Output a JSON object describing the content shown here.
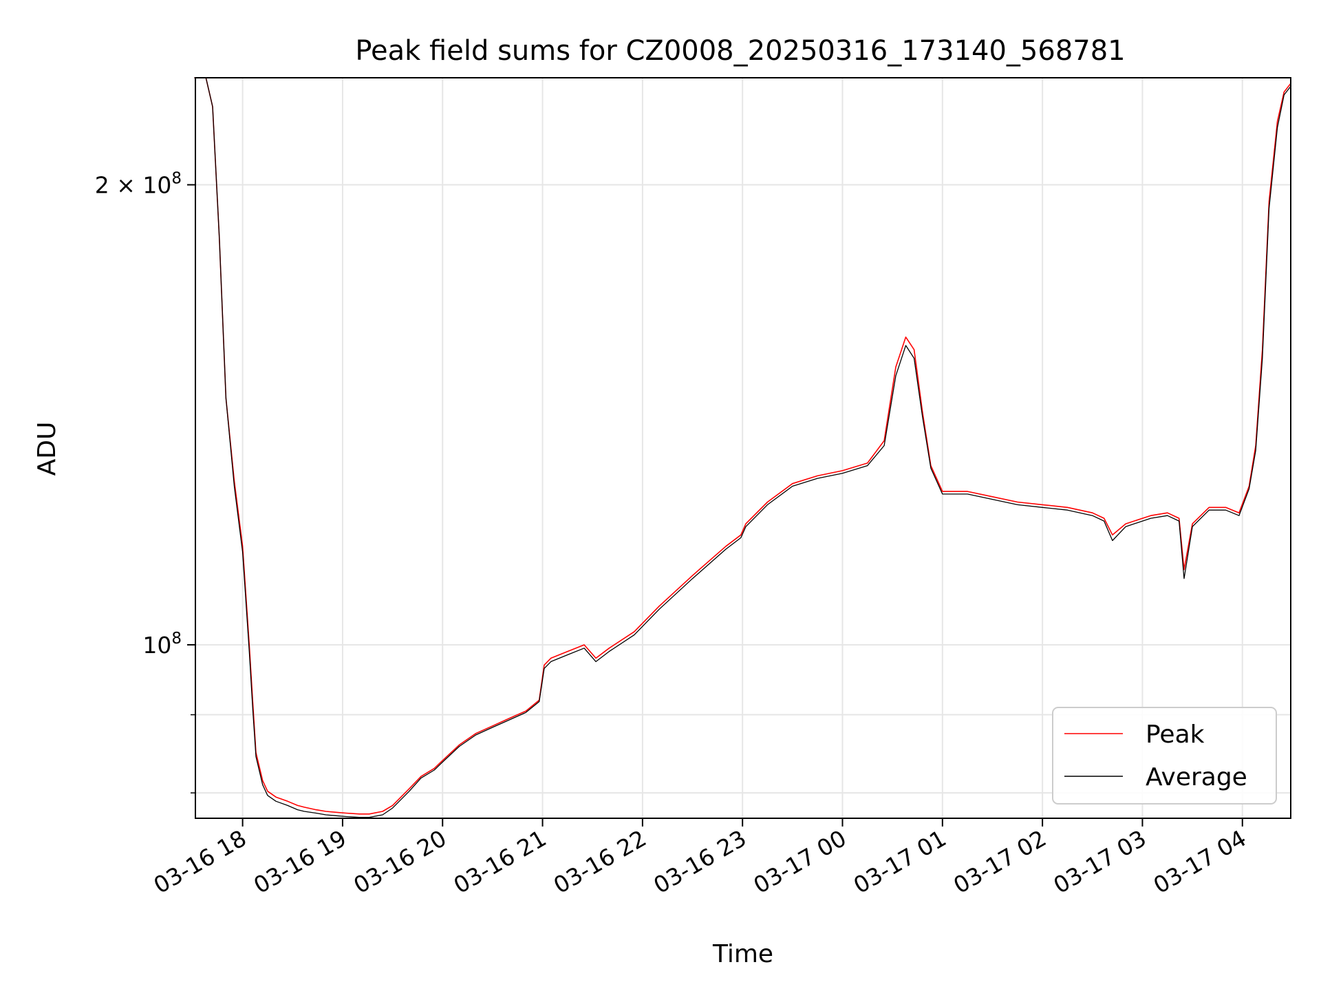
{
  "chart_data": {
    "type": "line",
    "title": "Peak field sums for CZ0008_20250316_173140_568781",
    "xlabel": "Time",
    "ylabel": "ADU",
    "y_scale": "log",
    "ylim": [
      77000000,
      235000000
    ],
    "xlim": [
      "2025-03-16 17:31:40",
      "2025-03-17 04:29:00"
    ],
    "grid": true,
    "legend_position": "lower-right",
    "x_ticks": [
      {
        "t": "2025-03-16 18:00",
        "label": "03-16 18"
      },
      {
        "t": "2025-03-16 19:00",
        "label": "03-16 19"
      },
      {
        "t": "2025-03-16 20:00",
        "label": "03-16 20"
      },
      {
        "t": "2025-03-16 21:00",
        "label": "03-16 21"
      },
      {
        "t": "2025-03-16 22:00",
        "label": "03-16 22"
      },
      {
        "t": "2025-03-16 23:00",
        "label": "03-16 23"
      },
      {
        "t": "2025-03-17 00:00",
        "label": "03-17 00"
      },
      {
        "t": "2025-03-17 01:00",
        "label": "03-17 01"
      },
      {
        "t": "2025-03-17 02:00",
        "label": "03-17 02"
      },
      {
        "t": "2025-03-17 03:00",
        "label": "03-17 03"
      },
      {
        "t": "2025-03-17 04:00",
        "label": "03-17 04"
      }
    ],
    "y_major_ticks": [
      {
        "value": 100000000,
        "label_base": "10",
        "label_exp": "8"
      },
      {
        "value": 200000000,
        "label_base": "2 × 10",
        "label_exp": "8"
      }
    ],
    "y_minor_ticks": [
      80000000,
      90000000
    ],
    "series": [
      {
        "name": "Peak",
        "color": "#ff0000",
        "x": [
          "2025-03-16 17:31",
          "2025-03-16 17:38",
          "2025-03-16 17:42",
          "2025-03-16 17:46",
          "2025-03-16 17:50",
          "2025-03-16 17:55",
          "2025-03-16 18:00",
          "2025-03-16 18:04",
          "2025-03-16 18:06",
          "2025-03-16 18:08",
          "2025-03-16 18:12",
          "2025-03-16 18:15",
          "2025-03-16 18:20",
          "2025-03-16 18:27",
          "2025-03-16 18:33",
          "2025-03-16 18:37",
          "2025-03-16 18:44",
          "2025-03-16 18:50",
          "2025-03-16 18:56",
          "2025-03-16 19:02",
          "2025-03-16 19:10",
          "2025-03-16 19:16",
          "2025-03-16 19:24",
          "2025-03-16 19:30",
          "2025-03-16 19:40",
          "2025-03-16 19:47",
          "2025-03-16 19:55",
          "2025-03-16 20:00",
          "2025-03-16 20:10",
          "2025-03-16 20:20",
          "2025-03-16 20:30",
          "2025-03-16 20:40",
          "2025-03-16 20:50",
          "2025-03-16 20:58",
          "2025-03-16 21:01",
          "2025-03-16 21:05",
          "2025-03-16 21:15",
          "2025-03-16 21:25",
          "2025-03-16 21:32",
          "2025-03-16 21:40",
          "2025-03-16 21:55",
          "2025-03-16 22:10",
          "2025-03-16 22:30",
          "2025-03-16 22:50",
          "2025-03-16 22:59",
          "2025-03-16 23:02",
          "2025-03-16 23:15",
          "2025-03-16 23:30",
          "2025-03-16 23:45",
          "2025-03-17 00:00",
          "2025-03-17 00:15",
          "2025-03-17 00:25",
          "2025-03-17 00:32",
          "2025-03-17 00:38",
          "2025-03-17 00:43",
          "2025-03-17 00:48",
          "2025-03-17 00:53",
          "2025-03-17 01:00",
          "2025-03-17 01:15",
          "2025-03-17 01:30",
          "2025-03-17 01:45",
          "2025-03-17 02:00",
          "2025-03-17 02:15",
          "2025-03-17 02:30",
          "2025-03-17 02:37",
          "2025-03-17 02:42",
          "2025-03-17 02:50",
          "2025-03-17 03:05",
          "2025-03-17 03:15",
          "2025-03-17 03:22",
          "2025-03-17 03:25",
          "2025-03-17 03:30",
          "2025-03-17 03:40",
          "2025-03-17 03:50",
          "2025-03-17 03:58",
          "2025-03-17 04:04",
          "2025-03-17 04:08",
          "2025-03-17 04:12",
          "2025-03-17 04:16",
          "2025-03-17 04:21",
          "2025-03-17 04:25",
          "2025-03-17 04:29"
        ],
        "y": [
          235000000,
          235000000,
          225000000,
          185000000,
          145000000,
          128000000,
          116000000,
          100000000,
          92000000,
          85000000,
          81500000,
          80200000,
          79500000,
          79000000,
          78500000,
          78300000,
          78000000,
          77800000,
          77700000,
          77600000,
          77500000,
          77500000,
          77800000,
          78500000,
          80500000,
          82000000,
          83000000,
          84000000,
          86000000,
          87500000,
          88500000,
          89500000,
          90500000,
          92000000,
          97000000,
          98000000,
          99000000,
          100000000,
          98000000,
          99500000,
          102000000,
          106000000,
          111000000,
          116000000,
          118000000,
          120000000,
          124000000,
          127500000,
          129000000,
          130000000,
          131500000,
          136000000,
          152000000,
          159000000,
          156000000,
          142000000,
          131000000,
          126000000,
          126000000,
          125000000,
          124000000,
          123500000,
          123000000,
          122000000,
          121000000,
          118000000,
          120000000,
          121500000,
          122000000,
          121000000,
          112000000,
          120000000,
          123000000,
          123000000,
          122000000,
          127000000,
          135000000,
          156000000,
          195000000,
          220000000,
          230000000,
          233000000
        ]
      },
      {
        "name": "Average",
        "color": "#000000",
        "x": [
          "2025-03-16 17:31",
          "2025-03-16 17:38",
          "2025-03-16 17:42",
          "2025-03-16 17:46",
          "2025-03-16 17:50",
          "2025-03-16 17:55",
          "2025-03-16 18:00",
          "2025-03-16 18:04",
          "2025-03-16 18:06",
          "2025-03-16 18:08",
          "2025-03-16 18:12",
          "2025-03-16 18:15",
          "2025-03-16 18:20",
          "2025-03-16 18:27",
          "2025-03-16 18:33",
          "2025-03-16 18:37",
          "2025-03-16 18:44",
          "2025-03-16 18:50",
          "2025-03-16 18:56",
          "2025-03-16 19:02",
          "2025-03-16 19:10",
          "2025-03-16 19:16",
          "2025-03-16 19:24",
          "2025-03-16 19:30",
          "2025-03-16 19:40",
          "2025-03-16 19:47",
          "2025-03-16 19:55",
          "2025-03-16 20:00",
          "2025-03-16 20:10",
          "2025-03-16 20:20",
          "2025-03-16 20:30",
          "2025-03-16 20:40",
          "2025-03-16 20:50",
          "2025-03-16 20:58",
          "2025-03-16 21:01",
          "2025-03-16 21:05",
          "2025-03-16 21:15",
          "2025-03-16 21:25",
          "2025-03-16 21:32",
          "2025-03-16 21:40",
          "2025-03-16 21:55",
          "2025-03-16 22:10",
          "2025-03-16 22:30",
          "2025-03-16 22:50",
          "2025-03-16 22:59",
          "2025-03-16 23:02",
          "2025-03-16 23:15",
          "2025-03-16 23:30",
          "2025-03-16 23:45",
          "2025-03-17 00:00",
          "2025-03-17 00:15",
          "2025-03-17 00:25",
          "2025-03-17 00:32",
          "2025-03-17 00:38",
          "2025-03-17 00:43",
          "2025-03-17 00:48",
          "2025-03-17 00:53",
          "2025-03-17 01:00",
          "2025-03-17 01:15",
          "2025-03-17 01:30",
          "2025-03-17 01:45",
          "2025-03-17 02:00",
          "2025-03-17 02:15",
          "2025-03-17 02:30",
          "2025-03-17 02:37",
          "2025-03-17 02:42",
          "2025-03-17 02:50",
          "2025-03-17 03:05",
          "2025-03-17 03:15",
          "2025-03-17 03:22",
          "2025-03-17 03:25",
          "2025-03-17 03:30",
          "2025-03-17 03:40",
          "2025-03-17 03:50",
          "2025-03-17 03:58",
          "2025-03-17 04:04",
          "2025-03-17 04:08",
          "2025-03-17 04:12",
          "2025-03-17 04:16",
          "2025-03-17 04:21",
          "2025-03-17 04:25",
          "2025-03-17 04:29"
        ],
        "y": [
          235000000,
          235000000,
          225000000,
          185000000,
          145000000,
          127000000,
          115000000,
          99000000,
          91000000,
          84500000,
          81000000,
          79700000,
          79000000,
          78500000,
          78000000,
          77800000,
          77600000,
          77400000,
          77300000,
          77200000,
          77100000,
          77100000,
          77400000,
          78200000,
          80200000,
          81800000,
          82800000,
          83800000,
          85800000,
          87300000,
          88300000,
          89300000,
          90300000,
          91800000,
          96500000,
          97500000,
          98500000,
          99500000,
          97500000,
          99000000,
          101500000,
          105500000,
          110500000,
          115500000,
          117500000,
          119500000,
          123500000,
          127000000,
          128500000,
          129500000,
          131000000,
          135000000,
          150000000,
          157000000,
          154000000,
          141000000,
          130500000,
          125500000,
          125500000,
          124500000,
          123500000,
          123000000,
          122500000,
          121500000,
          120500000,
          117000000,
          119500000,
          121000000,
          121500000,
          120500000,
          110500000,
          119500000,
          122500000,
          122500000,
          121500000,
          126500000,
          134000000,
          154000000,
          193000000,
          218000000,
          229000000,
          232000000
        ]
      }
    ]
  }
}
